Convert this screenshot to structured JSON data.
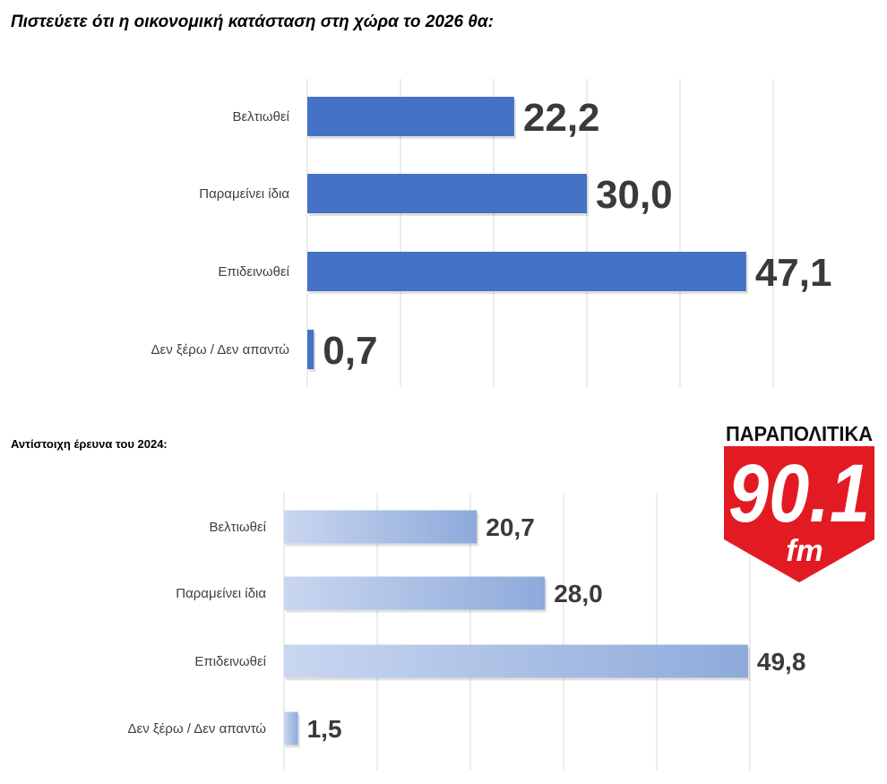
{
  "title": "Πιστεύετε ότι η οικονομική κατάσταση στη χώρα το 2026 θα:",
  "subtitle": "Αντίστοιχη έρευνα του 2024:",
  "logo": {
    "top_text": "ΠΑΡΑΠΟΛΙΤΙΚΑ",
    "number": "90.1",
    "unit": "fm",
    "color": "#e21b23"
  },
  "chart_data": [
    {
      "type": "bar",
      "orientation": "horizontal",
      "title": "Πιστεύετε ότι η οικονομική κατάσταση στη χώρα το 2026 θα:",
      "categories": [
        "Βελτιωθεί",
        "Παραμείνει ίδια",
        "Επιδεινωθεί",
        "Δεν ξέρω / Δεν απαντώ"
      ],
      "values": [
        22.2,
        30.0,
        47.1,
        0.7
      ],
      "value_labels": [
        "22,2",
        "30,0",
        "47,1",
        "0,7"
      ],
      "xlim": [
        0,
        50
      ],
      "grid": true,
      "bar_color": "#4472c4"
    },
    {
      "type": "bar",
      "orientation": "horizontal",
      "title": "Αντίστοιχη έρευνα του 2024:",
      "categories": [
        "Βελτιωθεί",
        "Παραμείνει ίδια",
        "Επιδεινωθεί",
        "Δεν ξέρω / Δεν απαντώ"
      ],
      "values": [
        20.7,
        28.0,
        49.8,
        1.5
      ],
      "value_labels": [
        "20,7",
        "28,0",
        "49,8",
        "1,5"
      ],
      "xlim": [
        0,
        50
      ],
      "grid": true,
      "bar_color": "#8eaadb"
    }
  ]
}
